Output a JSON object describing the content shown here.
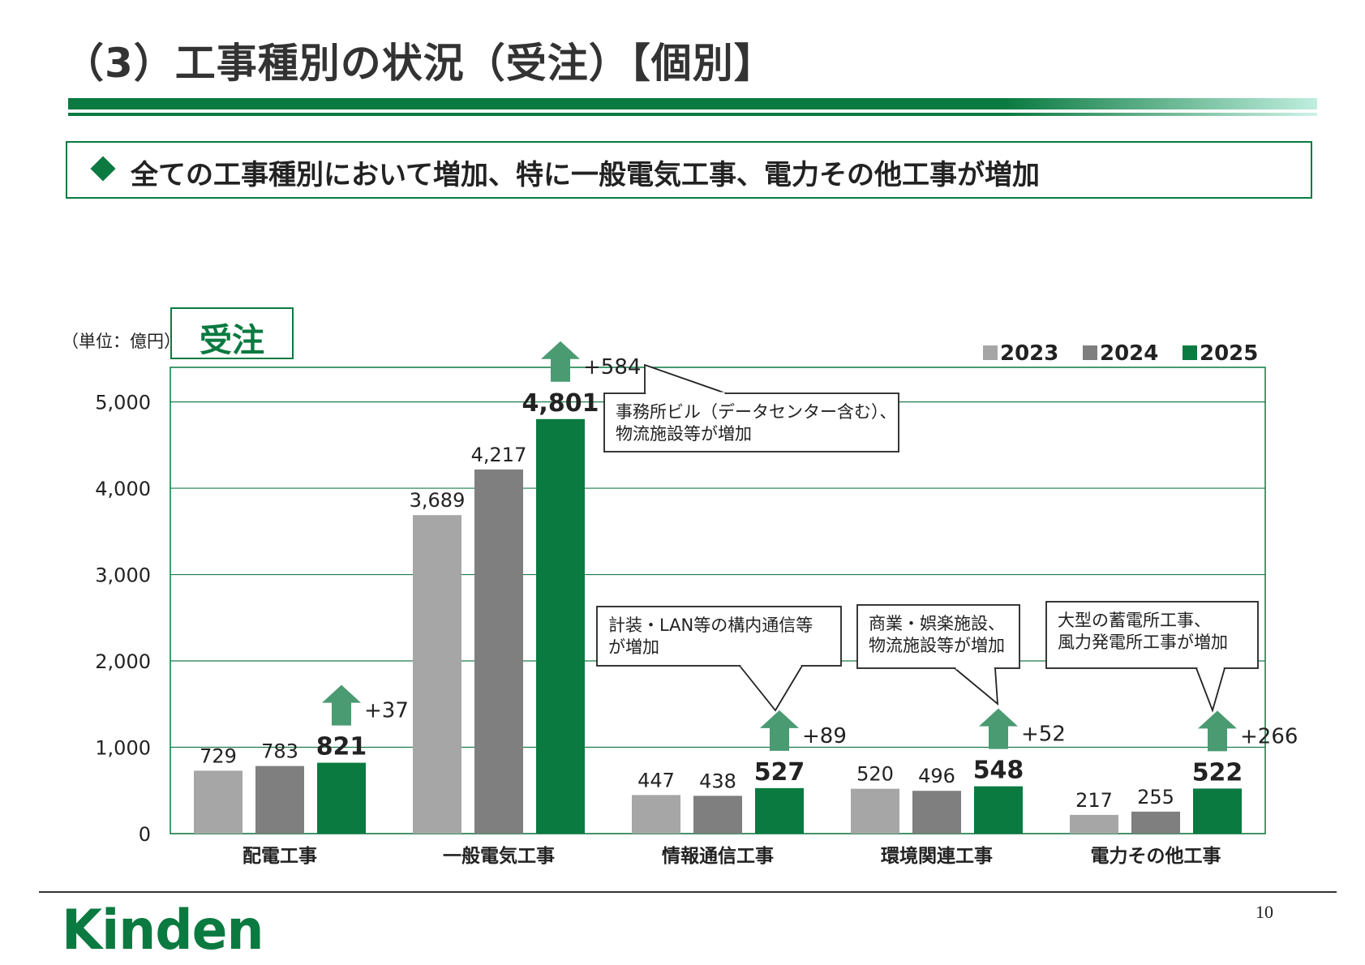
{
  "slide": {
    "title": "（3）工事種別の状況（受注）【個別】",
    "headline": "全ての工事種別において増加、特に一般電気工事、電力その他工事が増加",
    "unit": "（単位：億円）",
    "chart_label": "受注",
    "page_number": "10",
    "logo": "Kinden"
  },
  "colors": {
    "brand_green": "#0a7a40",
    "series_2023": "#a6a6a6",
    "series_2024": "#7f7f7f",
    "series_2025": "#0a7a40",
    "arrow": "#4a9a72"
  },
  "chart_data": {
    "type": "bar",
    "categories": [
      "配電工事",
      "一般電気工事",
      "情報通信工事",
      "環境関連工事",
      "電力その他工事"
    ],
    "series": [
      {
        "name": "2023",
        "values": [
          729,
          3689,
          447,
          520,
          217
        ]
      },
      {
        "name": "2024",
        "values": [
          783,
          4217,
          438,
          496,
          255
        ]
      },
      {
        "name": "2025",
        "values": [
          821,
          4801,
          527,
          548,
          522
        ]
      }
    ],
    "value_labels": [
      [
        "729",
        "3,689",
        "447",
        "520",
        "217"
      ],
      [
        "783",
        "4,217",
        "438",
        "496",
        "255"
      ],
      [
        "821",
        "4,801",
        "527",
        "548",
        "522"
      ]
    ],
    "changes": [
      "+37",
      "+584",
      "+89",
      "+52",
      "+266"
    ],
    "ylim": [
      0,
      5400
    ],
    "yticks": [
      0,
      1000,
      2000,
      3000,
      4000,
      5000
    ],
    "ytick_labels": [
      "0",
      "1,000",
      "2,000",
      "3,000",
      "4,000",
      "5,000"
    ],
    "grid": true,
    "legend_position": "top-right",
    "callouts": [
      {
        "category": 1,
        "lines": [
          "事務所ビル（データセンター含む）、",
          "物流施設等が増加"
        ]
      },
      {
        "category": 2,
        "lines": [
          "計装・LAN等の構内通信等",
          "が増加"
        ]
      },
      {
        "category": 3,
        "lines": [
          "商業・娯楽施設、",
          "物流施設等が増加"
        ]
      },
      {
        "category": 4,
        "lines": [
          "大型の蓄電所工事、",
          "風力発電所工事が増加"
        ]
      }
    ]
  }
}
